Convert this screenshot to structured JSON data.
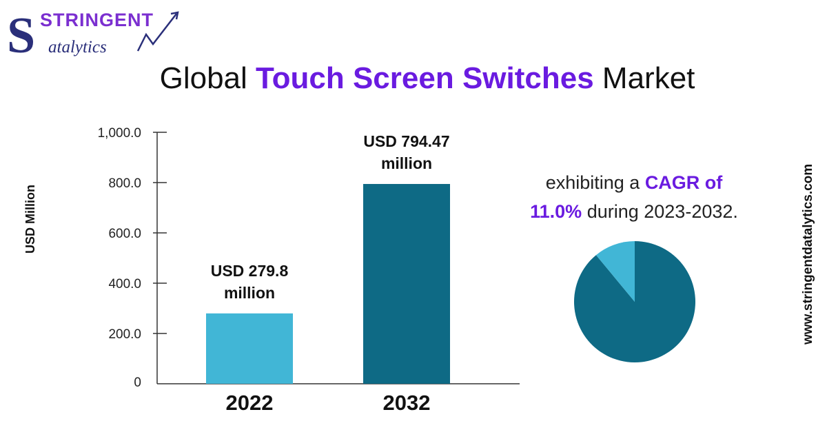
{
  "brand": {
    "name_line1": "STRINGENT",
    "name_line2": "atalytics",
    "letter": "S",
    "colors": {
      "navy": "#2a2f7a",
      "purple": "#7b2fd0",
      "teal": "#1e6f86"
    }
  },
  "title": {
    "prefix": "Global",
    "highlight": "Touch Screen Switches",
    "suffix": "Market",
    "highlight_color": "#6a1be0"
  },
  "cagr": {
    "line1_prefix": "exhibiting a",
    "line1_highlight": "CAGR of",
    "line2_highlight": "11.0%",
    "line2_suffix": "during 2023-2032."
  },
  "website": "www.stringentdatalytics.com",
  "chart_data": [
    {
      "type": "bar",
      "categories": [
        "2022",
        "2032"
      ],
      "values": [
        279.8,
        794.47
      ],
      "ylabel": "USD   Million",
      "ylim": [
        0,
        1000
      ],
      "yticks": [
        {
          "value": 0,
          "label": "0"
        },
        {
          "value": 200,
          "label": "200.0"
        },
        {
          "value": 400,
          "label": "400.0"
        },
        {
          "value": 600,
          "label": "600.0"
        },
        {
          "value": 800,
          "label": "800.0"
        },
        {
          "value": 1000,
          "label": "1,000.0"
        }
      ],
      "data_labels": [
        [
          "USD 279.8",
          "million"
        ],
        [
          "USD 794.47",
          "million"
        ]
      ],
      "bar_colors": [
        "#41b6d6",
        "#0e6a85"
      ],
      "grid": false
    },
    {
      "type": "pie",
      "values": [
        89,
        11
      ],
      "colors": [
        "#0e6a85",
        "#41b6d6"
      ]
    }
  ]
}
